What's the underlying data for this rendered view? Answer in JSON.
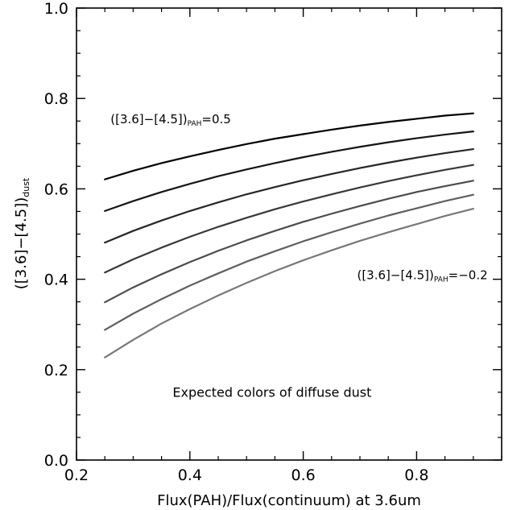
{
  "chart_data": {
    "type": "line",
    "xlabel": "Flux(PAH)/Flux(continuum) at 3.6um",
    "ylabel": {
      "main": "([3.6]−[4.5])",
      "sub": "dust"
    },
    "xlim": [
      0.2,
      0.95
    ],
    "ylim": [
      0.0,
      1.0
    ],
    "xticks": [
      "0.2",
      "0.4",
      "0.6",
      "0.8"
    ],
    "yticks": [
      "0.0",
      "0.2",
      "0.4",
      "0.6",
      "0.8",
      "1.0"
    ],
    "grid": false,
    "x": [
      0.25,
      0.3,
      0.35,
      0.4,
      0.45,
      0.5,
      0.55,
      0.6,
      0.65,
      0.7,
      0.75,
      0.8,
      0.85,
      0.9
    ],
    "series": [
      {
        "values": [
          0.621,
          0.64,
          0.657,
          0.672,
          0.686,
          0.699,
          0.711,
          0.721,
          0.731,
          0.74,
          0.748,
          0.755,
          0.762,
          0.767
        ],
        "color": "#000000"
      },
      {
        "values": [
          0.551,
          0.573,
          0.593,
          0.611,
          0.628,
          0.643,
          0.657,
          0.67,
          0.682,
          0.693,
          0.703,
          0.712,
          0.72,
          0.727
        ],
        "color": "#151515"
      },
      {
        "values": [
          0.481,
          0.507,
          0.53,
          0.551,
          0.57,
          0.588,
          0.604,
          0.619,
          0.633,
          0.646,
          0.658,
          0.669,
          0.679,
          0.688
        ],
        "color": "#262626"
      },
      {
        "values": [
          0.415,
          0.444,
          0.47,
          0.494,
          0.516,
          0.536,
          0.555,
          0.572,
          0.588,
          0.603,
          0.617,
          0.63,
          0.642,
          0.653
        ],
        "color": "#383838"
      },
      {
        "values": [
          0.349,
          0.382,
          0.411,
          0.438,
          0.463,
          0.486,
          0.507,
          0.527,
          0.545,
          0.562,
          0.578,
          0.593,
          0.606,
          0.618
        ],
        "color": "#4c4c4c"
      },
      {
        "values": [
          0.288,
          0.324,
          0.356,
          0.386,
          0.413,
          0.439,
          0.462,
          0.484,
          0.504,
          0.523,
          0.541,
          0.557,
          0.573,
          0.587
        ],
        "color": "#5f5f5f"
      },
      {
        "values": [
          0.227,
          0.266,
          0.302,
          0.334,
          0.364,
          0.392,
          0.418,
          0.442,
          0.464,
          0.485,
          0.504,
          0.522,
          0.54,
          0.556
        ],
        "color": "#777777"
      }
    ],
    "annotations": [
      {
        "id": "top",
        "main": "([3.6]−[4.5])",
        "sub": "PAH",
        "tail": "=0.5",
        "x": 0.26,
        "y": 0.745,
        "color": "#000000"
      },
      {
        "id": "bottom",
        "main": "([3.6]−[4.5])",
        "sub": "PAH",
        "tail": "=−0.2",
        "x": 0.695,
        "y": 0.4,
        "color": "#8c8c8c"
      },
      {
        "id": "caption",
        "text": "Expected colors of diffuse dust",
        "x": 0.545,
        "y": 0.14,
        "color": "#000000"
      }
    ]
  }
}
